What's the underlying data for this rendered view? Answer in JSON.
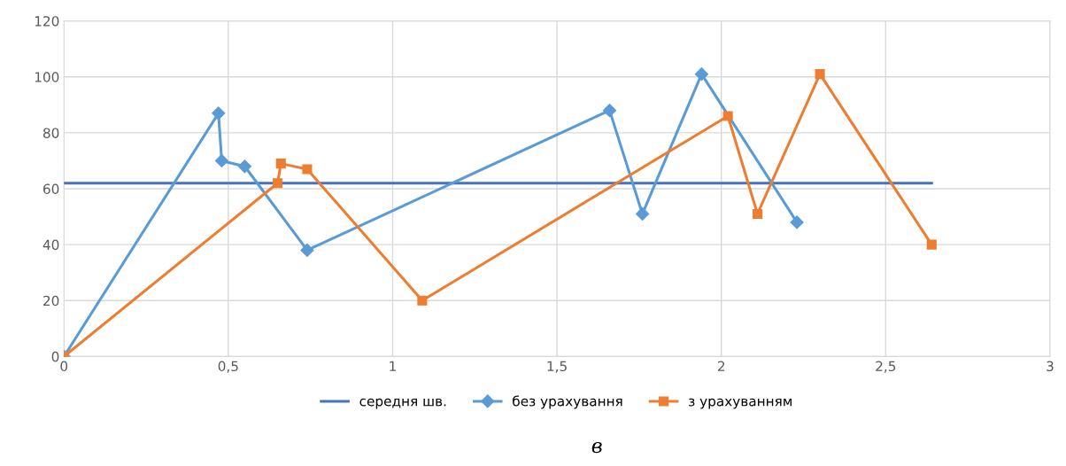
{
  "chart_data": {
    "type": "line",
    "xlim": [
      0,
      3
    ],
    "ylim": [
      0,
      120
    ],
    "xticks": [
      0,
      {
        "value": 0.5,
        "label": "0,5"
      },
      1,
      {
        "value": 1.5,
        "label": "1,5"
      },
      2,
      {
        "value": 2.5,
        "label": "2,5"
      },
      3
    ],
    "yticks": [
      0,
      20,
      40,
      60,
      80,
      100,
      120
    ],
    "grid": true,
    "legend": "bottom",
    "annotations": [
      "в"
    ],
    "series": [
      {
        "name": "середня шв.",
        "color": "#4472c4",
        "marker": "none",
        "x": [
          0,
          2.64
        ],
        "values": [
          62,
          62
        ]
      },
      {
        "name": "без урахування",
        "color": "#5b9bd5",
        "marker": "diamond",
        "x": [
          0,
          0.47,
          0.48,
          0.55,
          0.74,
          1.66,
          1.76,
          1.94,
          2.23
        ],
        "values": [
          0,
          87,
          70,
          68,
          38,
          88,
          51,
          101,
          48
        ]
      },
      {
        "name": "з урахуванням",
        "color": "#ed7d31",
        "marker": "square",
        "x": [
          0,
          0.65,
          0.66,
          0.74,
          1.09,
          2.02,
          2.11,
          2.3,
          2.64
        ],
        "values": [
          0,
          62,
          69,
          67,
          20,
          86,
          51,
          101,
          40
        ]
      }
    ]
  }
}
